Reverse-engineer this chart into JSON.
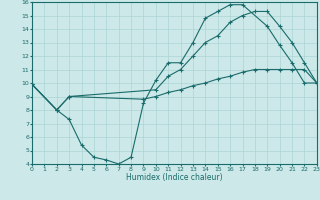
{
  "bg_color": "#cce8e8",
  "line_color": "#1a6b6b",
  "grid_color": "#aad4d4",
  "xlabel": "Humidex (Indice chaleur)",
  "xlim": [
    0,
    23
  ],
  "ylim": [
    4,
    16
  ],
  "xticks": [
    0,
    1,
    2,
    3,
    4,
    5,
    6,
    7,
    8,
    9,
    10,
    11,
    12,
    13,
    14,
    15,
    16,
    17,
    18,
    19,
    20,
    21,
    22,
    23
  ],
  "yticks": [
    4,
    5,
    6,
    7,
    8,
    9,
    10,
    11,
    12,
    13,
    14,
    15,
    16
  ],
  "line1_x": [
    0,
    2,
    3,
    4,
    5,
    6,
    7,
    8,
    9,
    10,
    11,
    12,
    13,
    14,
    15,
    16,
    17,
    19,
    20,
    21,
    22,
    23
  ],
  "line1_y": [
    9.9,
    8.0,
    7.3,
    5.4,
    4.5,
    4.3,
    4.0,
    4.5,
    8.5,
    10.2,
    11.5,
    11.5,
    13.0,
    14.8,
    15.3,
    15.8,
    15.8,
    14.2,
    12.8,
    11.5,
    10.0,
    10.0
  ],
  "line2_x": [
    0,
    2,
    3,
    10,
    11,
    12,
    13,
    14,
    15,
    16,
    17,
    18,
    19,
    20,
    21,
    22,
    23
  ],
  "line2_y": [
    9.9,
    8.0,
    9.0,
    9.5,
    10.5,
    11.0,
    12.0,
    13.0,
    13.5,
    14.5,
    15.0,
    15.3,
    15.3,
    14.2,
    13.0,
    11.5,
    10.0
  ],
  "line3_x": [
    0,
    2,
    3,
    9,
    10,
    11,
    12,
    13,
    14,
    15,
    16,
    17,
    18,
    19,
    20,
    21,
    22,
    23
  ],
  "line3_y": [
    9.9,
    8.0,
    9.0,
    8.8,
    9.0,
    9.3,
    9.5,
    9.8,
    10.0,
    10.3,
    10.5,
    10.8,
    11.0,
    11.0,
    11.0,
    11.0,
    11.0,
    10.0
  ]
}
